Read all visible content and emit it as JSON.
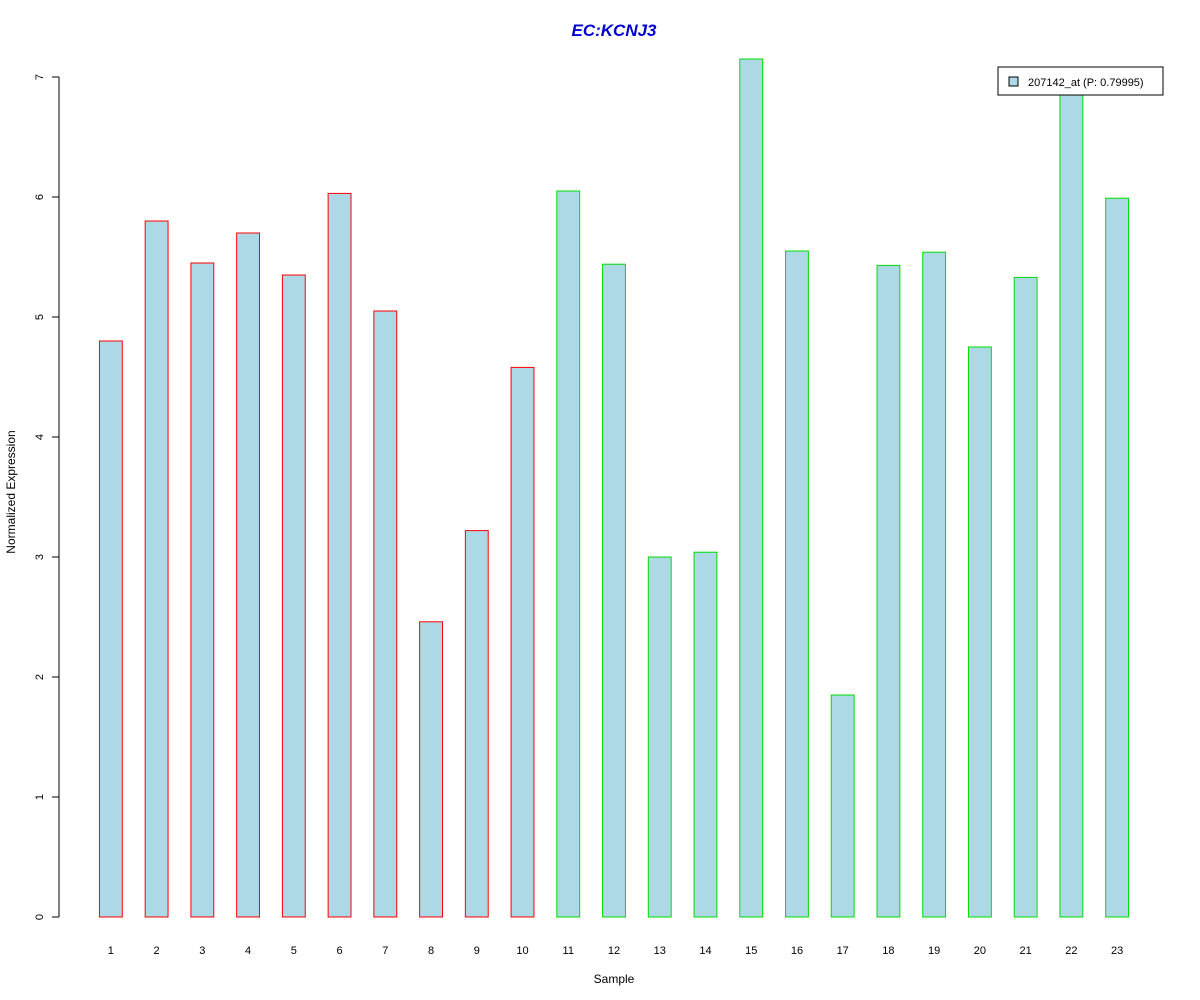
{
  "colors": {
    "title": "#0000CC",
    "bar_fill": "#ADD8E6",
    "group1_border": "#FF0000",
    "group2_border": "#00DD00",
    "axis": "#000000"
  },
  "chart_data": {
    "type": "bar",
    "title": "EC:KCNJ3",
    "xlabel": "Sample",
    "ylabel": "Normalized Expression",
    "ylim": [
      0,
      7
    ],
    "yticks": [
      0,
      1,
      2,
      3,
      4,
      5,
      6,
      7
    ],
    "grid": false,
    "legend": {
      "position": "top-right",
      "label": "207142_at (P: 0.79995)"
    },
    "categories": [
      "1",
      "2",
      "3",
      "4",
      "5",
      "6",
      "7",
      "8",
      "9",
      "10",
      "11",
      "12",
      "13",
      "14",
      "15",
      "16",
      "17",
      "18",
      "19",
      "20",
      "21",
      "22",
      "23"
    ],
    "series": [
      {
        "name": "207142_at (P: 0.79995)",
        "values": [
          4.8,
          5.8,
          5.45,
          5.7,
          5.35,
          6.03,
          5.05,
          2.46,
          3.22,
          4.58,
          6.05,
          5.44,
          3.0,
          3.04,
          7.15,
          5.55,
          1.85,
          5.43,
          5.54,
          4.75,
          5.33,
          6.85,
          5.99
        ],
        "groups": [
          1,
          1,
          1,
          1,
          1,
          1,
          1,
          1,
          1,
          1,
          2,
          2,
          2,
          2,
          2,
          2,
          2,
          2,
          2,
          2,
          2,
          2,
          2
        ]
      }
    ]
  }
}
